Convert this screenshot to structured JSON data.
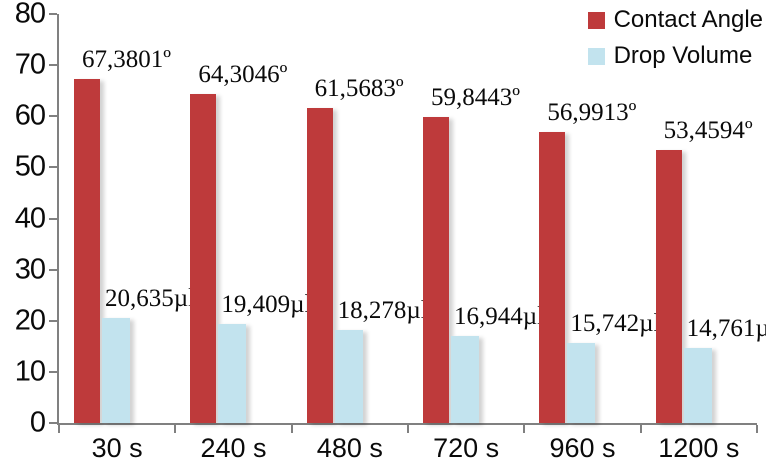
{
  "chart_data": {
    "type": "bar",
    "categories": [
      "30 s",
      "240 s",
      "480 s",
      "720 s",
      "960 s",
      "1200 s"
    ],
    "series": [
      {
        "name": "Contact Angle",
        "color": "#be3a3b",
        "values": [
          67.3801,
          64.3046,
          61.5683,
          59.8443,
          56.9913,
          53.4594
        ],
        "labels": [
          "67,3801º",
          "64,3046º",
          "61,5683º",
          "59,8443º",
          "56,9913º",
          "53,4594º"
        ]
      },
      {
        "name": "Drop Volume",
        "color": "#c2e3ee",
        "values": [
          20.635,
          19.409,
          18.278,
          16.944,
          15.742,
          14.761
        ],
        "labels": [
          "20,635µl",
          "19,409µl",
          "18,278µl",
          "16,944µl",
          "15,742µl",
          "14,761µl"
        ]
      }
    ],
    "ylim": [
      0,
      80
    ],
    "yticks": [
      0,
      10,
      20,
      30,
      40,
      50,
      60,
      70,
      80
    ],
    "xlabel": "",
    "ylabel": "",
    "grid": false,
    "legend_position": "top-right"
  },
  "colors": {
    "axis": "#808080",
    "text": "#0a0a0a",
    "background": "#ffffff",
    "contact_angle": "#be3a3b",
    "drop_volume": "#c2e3ee"
  }
}
